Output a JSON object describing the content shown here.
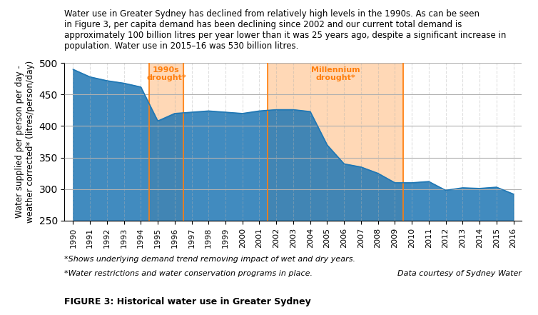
{
  "chart_data": {
    "type": "area",
    "title": "Water use in Greater Sydney has declined from relatively high levels in the 1990s. As can be seen\nin Figure 3, per capita demand has been declining since 2002 and our current total demand is\napproximately 100 billion litres per year lower than it was 25 years ago, despite a significant increase in\npopulation. Water use in 2015–16 was 530 billion litres.",
    "y_label": "Water supplied per person per day -\nweather corrected* (litres/person/day)",
    "x": [
      1990,
      1991,
      1992,
      1993,
      1994,
      1995,
      1996,
      1997,
      1998,
      1999,
      2000,
      2001,
      2002,
      2003,
      2004,
      2005,
      2006,
      2007,
      2008,
      2009,
      2010,
      2011,
      2012,
      2013,
      2014,
      2015,
      2016
    ],
    "values": [
      490,
      478,
      472,
      468,
      462,
      408,
      420,
      422,
      424,
      422,
      420,
      424,
      426,
      426,
      423,
      370,
      340,
      335,
      325,
      310,
      310,
      312,
      298,
      302,
      301,
      303,
      292
    ],
    "xlim": [
      1989.5,
      2016.5
    ],
    "xticks": [
      1990,
      1991,
      1992,
      1993,
      1994,
      1995,
      1996,
      1997,
      1998,
      1999,
      2000,
      2001,
      2002,
      2003,
      2004,
      2005,
      2006,
      2007,
      2008,
      2009,
      2010,
      2011,
      2012,
      2013,
      2014,
      2015,
      2016
    ],
    "ylim": [
      250,
      500
    ],
    "yticks": [
      250,
      300,
      350,
      400,
      450,
      500
    ],
    "grid": true,
    "spans": [
      {
        "label": "1990s\ndrought*",
        "x_start": 1994.5,
        "x_end": 1996.5
      },
      {
        "label": "Millennium\ndrought*",
        "x_start": 2001.5,
        "x_end": 2009.5
      }
    ],
    "notes": [
      "*Shows underlying demand trend removing impact of wet and dry years.",
      "*Water restrictions and water conservation programs in place.",
      "Data courtesy of Sydney Water"
    ],
    "caption": "FIGURE 3: Historical water use in Greater Sydney"
  }
}
